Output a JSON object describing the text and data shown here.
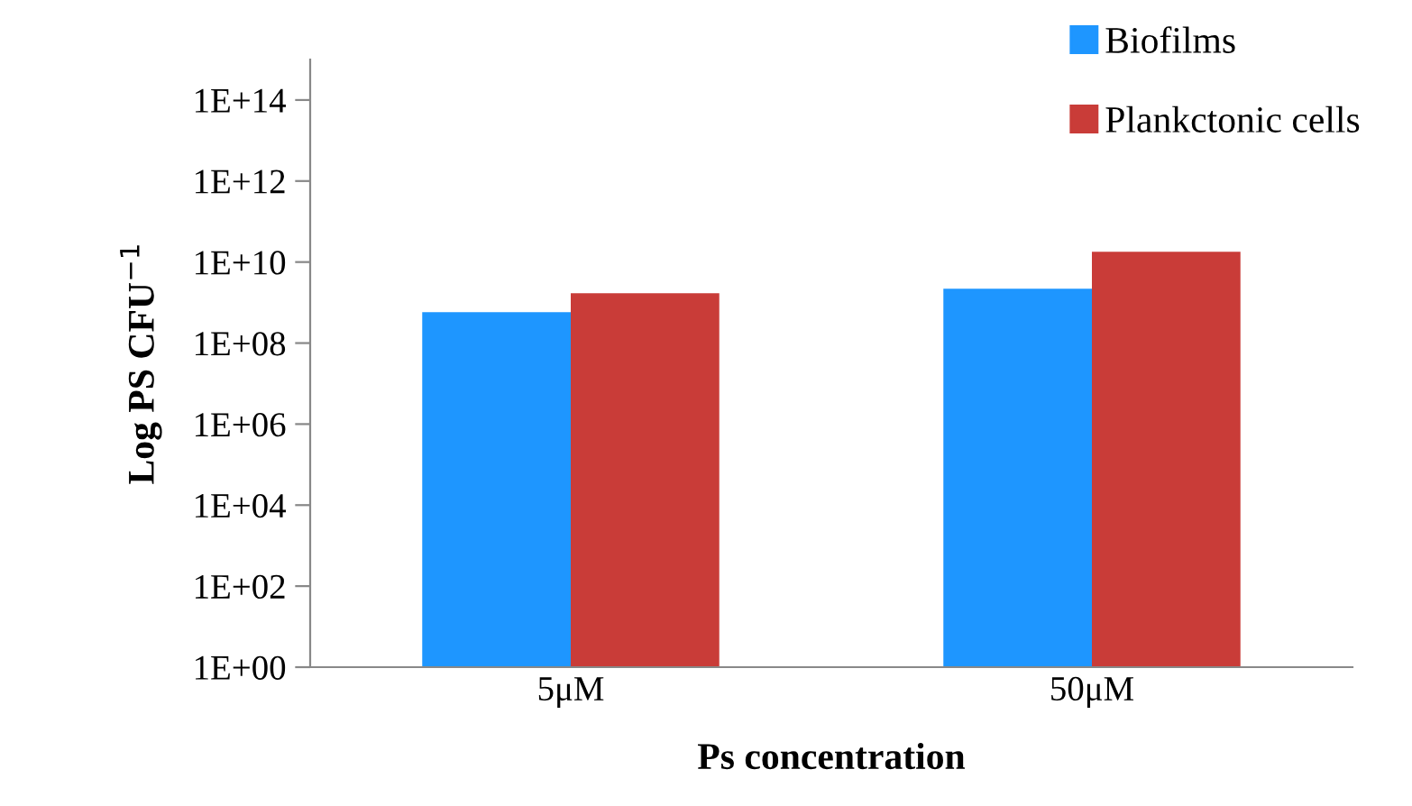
{
  "chart_data": {
    "type": "bar",
    "xlabel": "Ps concentration",
    "ylabel": "Log PS CFU$^{−1}$",
    "categories": [
      "5μM",
      "50μM"
    ],
    "series": [
      {
        "name": "Biofilms",
        "color": "#1e96ff",
        "values": [
          580000000.0,
          2200000000.0
        ]
      },
      {
        "name": "Plankctonic cells",
        "color": "#c93c38",
        "values": [
          1700000000.0,
          18000000000.0
        ]
      }
    ],
    "log": "y",
    "ylim": [
      1,
      1000000000000000.0
    ],
    "yticks": [
      {
        "value": 1,
        "label": "1E+00"
      },
      {
        "value": 100,
        "label": "1E+02"
      },
      {
        "value": 10000,
        "label": "1E+04"
      },
      {
        "value": 1000000,
        "label": "1E+06"
      },
      {
        "value": 100000000,
        "label": "1E+08"
      },
      {
        "value": 10000000000,
        "label": "1E+10"
      },
      {
        "value": 1000000000000,
        "label": "1E+12"
      },
      {
        "value": 100000000000000,
        "label": "1E+14"
      }
    ],
    "grid": false,
    "legend": "top right"
  }
}
